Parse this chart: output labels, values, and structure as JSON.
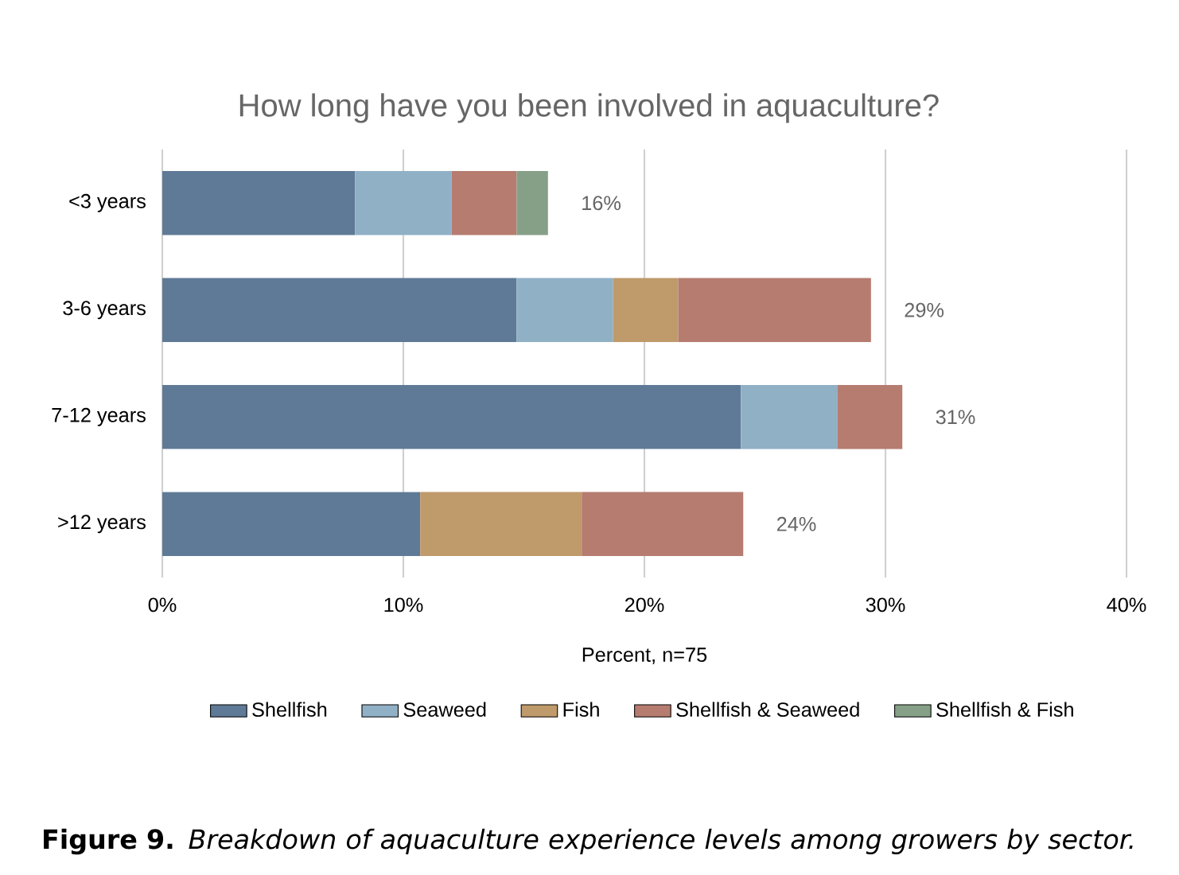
{
  "chart_data": {
    "type": "bar",
    "orientation": "horizontal",
    "stacked": true,
    "title": "How long have you been involved in aquaculture?",
    "xlabel": "Percent, n=75",
    "categories": [
      "<3 years",
      "3-6 years",
      "7-12 years",
      ">12 years"
    ],
    "series": [
      {
        "name": "Shellfish",
        "color": "#5f7a96",
        "values": [
          8.0,
          14.7,
          24.0,
          10.7
        ]
      },
      {
        "name": "Seaweed",
        "color": "#90b0c6",
        "values": [
          4.0,
          4.0,
          4.0,
          null
        ]
      },
      {
        "name": "Fish",
        "color": "#bf9a6b",
        "values": [
          null,
          2.7,
          null,
          6.7
        ]
      },
      {
        "name": "Shellfish & Seaweed",
        "color": "#b67c70",
        "values": [
          2.7,
          8.0,
          2.7,
          6.7
        ]
      },
      {
        "name": "Shellfish & Fish",
        "color": "#86a087",
        "values": [
          1.3,
          null,
          null,
          null
        ]
      }
    ],
    "totals": [
      "16%",
      "29%",
      "31%",
      "24%"
    ],
    "xlim": [
      0,
      40
    ],
    "xticks": [
      {
        "value": 0,
        "label": "0%"
      },
      {
        "value": 10,
        "label": "10%"
      },
      {
        "value": 20,
        "label": "20%"
      },
      {
        "value": 30,
        "label": "30%"
      },
      {
        "value": 40,
        "label": "40%"
      }
    ],
    "grid": "x",
    "legend": "bottom",
    "annotations": [
      "**Figure 9.** *Breakdown of aquaculture experience levels among growers by sector.*"
    ]
  }
}
